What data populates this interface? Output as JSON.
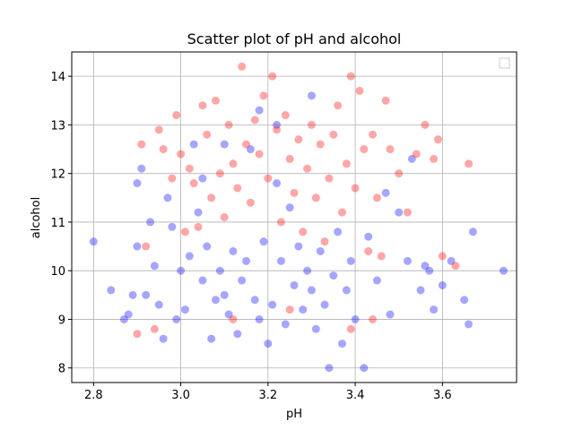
{
  "chart_data": {
    "type": "scatter",
    "title": "Scatter plot of pH and alcohol",
    "xlabel": "pH",
    "ylabel": "alcohol",
    "xlim": [
      2.75,
      3.77
    ],
    "ylim": [
      7.7,
      14.5
    ],
    "xticks": [
      "2.8",
      "3.0",
      "3.2",
      "3.4",
      "3.6"
    ],
    "yticks": [
      "8",
      "9",
      "10",
      "11",
      "12",
      "13",
      "14"
    ],
    "grid": true,
    "legend": {
      "location": "upper-right",
      "entries": []
    },
    "series": [
      {
        "name": "blue",
        "color": "#0000ff",
        "alpha": 0.35,
        "points": [
          [
            2.8,
            10.6
          ],
          [
            2.84,
            9.6
          ],
          [
            2.87,
            9.0
          ],
          [
            2.88,
            9.1
          ],
          [
            2.89,
            9.5
          ],
          [
            2.9,
            10.5
          ],
          [
            2.9,
            11.8
          ],
          [
            2.91,
            12.1
          ],
          [
            2.92,
            9.5
          ],
          [
            2.93,
            11.0
          ],
          [
            2.94,
            10.1
          ],
          [
            2.95,
            9.3
          ],
          [
            2.96,
            8.6
          ],
          [
            2.97,
            11.5
          ],
          [
            2.98,
            10.9
          ],
          [
            2.99,
            9.0
          ],
          [
            3.0,
            10.0
          ],
          [
            3.01,
            9.2
          ],
          [
            3.02,
            10.3
          ],
          [
            3.03,
            12.6
          ],
          [
            3.04,
            11.2
          ],
          [
            3.05,
            9.8
          ],
          [
            3.06,
            10.5
          ],
          [
            3.07,
            8.6
          ],
          [
            3.08,
            9.4
          ],
          [
            3.09,
            10.0
          ],
          [
            3.1,
            9.5
          ],
          [
            3.11,
            9.1
          ],
          [
            3.12,
            10.4
          ],
          [
            3.13,
            8.7
          ],
          [
            3.14,
            9.8
          ],
          [
            3.15,
            10.2
          ],
          [
            3.16,
            12.5
          ],
          [
            3.17,
            9.4
          ],
          [
            3.18,
            9.0
          ],
          [
            3.19,
            10.6
          ],
          [
            3.2,
            8.5
          ],
          [
            3.21,
            9.3
          ],
          [
            3.22,
            13.0
          ],
          [
            3.23,
            10.2
          ],
          [
            3.24,
            8.9
          ],
          [
            3.25,
            11.3
          ],
          [
            3.26,
            9.7
          ],
          [
            3.27,
            10.5
          ],
          [
            3.28,
            9.2
          ],
          [
            3.29,
            10.0
          ],
          [
            3.3,
            9.6
          ],
          [
            3.31,
            8.8
          ],
          [
            3.32,
            10.4
          ],
          [
            3.33,
            9.3
          ],
          [
            3.34,
            8.0
          ],
          [
            3.35,
            9.9
          ],
          [
            3.36,
            10.8
          ],
          [
            3.37,
            8.5
          ],
          [
            3.38,
            9.6
          ],
          [
            3.39,
            10.2
          ],
          [
            3.4,
            9.0
          ],
          [
            3.42,
            8.0
          ],
          [
            3.43,
            10.7
          ],
          [
            3.45,
            9.8
          ],
          [
            3.47,
            11.6
          ],
          [
            3.48,
            9.1
          ],
          [
            3.5,
            11.2
          ],
          [
            3.52,
            10.2
          ],
          [
            3.53,
            12.3
          ],
          [
            3.55,
            9.6
          ],
          [
            3.56,
            10.1
          ],
          [
            3.57,
            10.0
          ],
          [
            3.58,
            9.2
          ],
          [
            3.6,
            9.7
          ],
          [
            3.62,
            10.2
          ],
          [
            3.65,
            9.4
          ],
          [
            3.66,
            8.9
          ],
          [
            3.67,
            10.8
          ],
          [
            3.74,
            10.0
          ],
          [
            3.3,
            13.6
          ],
          [
            3.1,
            12.6
          ],
          [
            3.18,
            13.3
          ],
          [
            3.05,
            11.9
          ],
          [
            3.22,
            11.8
          ]
        ]
      },
      {
        "name": "red",
        "color": "#ff0000",
        "alpha": 0.35,
        "points": [
          [
            2.9,
            8.7
          ],
          [
            2.94,
            8.8
          ],
          [
            2.91,
            12.6
          ],
          [
            2.92,
            10.5
          ],
          [
            2.95,
            12.9
          ],
          [
            2.96,
            12.5
          ],
          [
            2.98,
            11.9
          ],
          [
            2.99,
            13.2
          ],
          [
            3.0,
            12.4
          ],
          [
            3.01,
            10.8
          ],
          [
            3.02,
            12.1
          ],
          [
            3.03,
            11.8
          ],
          [
            3.04,
            10.9
          ],
          [
            3.05,
            13.4
          ],
          [
            3.06,
            12.8
          ],
          [
            3.07,
            11.5
          ],
          [
            3.08,
            13.5
          ],
          [
            3.09,
            12.0
          ],
          [
            3.1,
            11.1
          ],
          [
            3.11,
            13.0
          ],
          [
            3.12,
            12.2
          ],
          [
            3.13,
            11.7
          ],
          [
            3.14,
            14.2
          ],
          [
            3.15,
            12.6
          ],
          [
            3.16,
            11.4
          ],
          [
            3.17,
            13.1
          ],
          [
            3.18,
            12.4
          ],
          [
            3.19,
            13.6
          ],
          [
            3.2,
            11.9
          ],
          [
            3.21,
            14.0
          ],
          [
            3.22,
            12.9
          ],
          [
            3.23,
            11.0
          ],
          [
            3.24,
            13.2
          ],
          [
            3.25,
            12.3
          ],
          [
            3.26,
            11.6
          ],
          [
            3.27,
            12.7
          ],
          [
            3.28,
            10.8
          ],
          [
            3.29,
            12.1
          ],
          [
            3.3,
            13.0
          ],
          [
            3.31,
            11.5
          ],
          [
            3.32,
            12.6
          ],
          [
            3.33,
            10.6
          ],
          [
            3.34,
            11.9
          ],
          [
            3.35,
            12.8
          ],
          [
            3.36,
            13.4
          ],
          [
            3.37,
            11.2
          ],
          [
            3.38,
            12.2
          ],
          [
            3.39,
            14.0
          ],
          [
            3.4,
            11.7
          ],
          [
            3.41,
            13.7
          ],
          [
            3.42,
            12.5
          ],
          [
            3.43,
            10.4
          ],
          [
            3.44,
            12.8
          ],
          [
            3.45,
            11.5
          ],
          [
            3.46,
            10.3
          ],
          [
            3.47,
            13.5
          ],
          [
            3.48,
            12.5
          ],
          [
            3.5,
            12.0
          ],
          [
            3.52,
            11.2
          ],
          [
            3.54,
            12.4
          ],
          [
            3.56,
            13.0
          ],
          [
            3.58,
            12.3
          ],
          [
            3.59,
            12.7
          ],
          [
            3.6,
            10.3
          ],
          [
            3.63,
            10.1
          ],
          [
            3.66,
            12.2
          ],
          [
            3.44,
            9.0
          ],
          [
            3.39,
            8.8
          ],
          [
            3.25,
            9.2
          ],
          [
            3.12,
            9.0
          ]
        ]
      }
    ]
  }
}
